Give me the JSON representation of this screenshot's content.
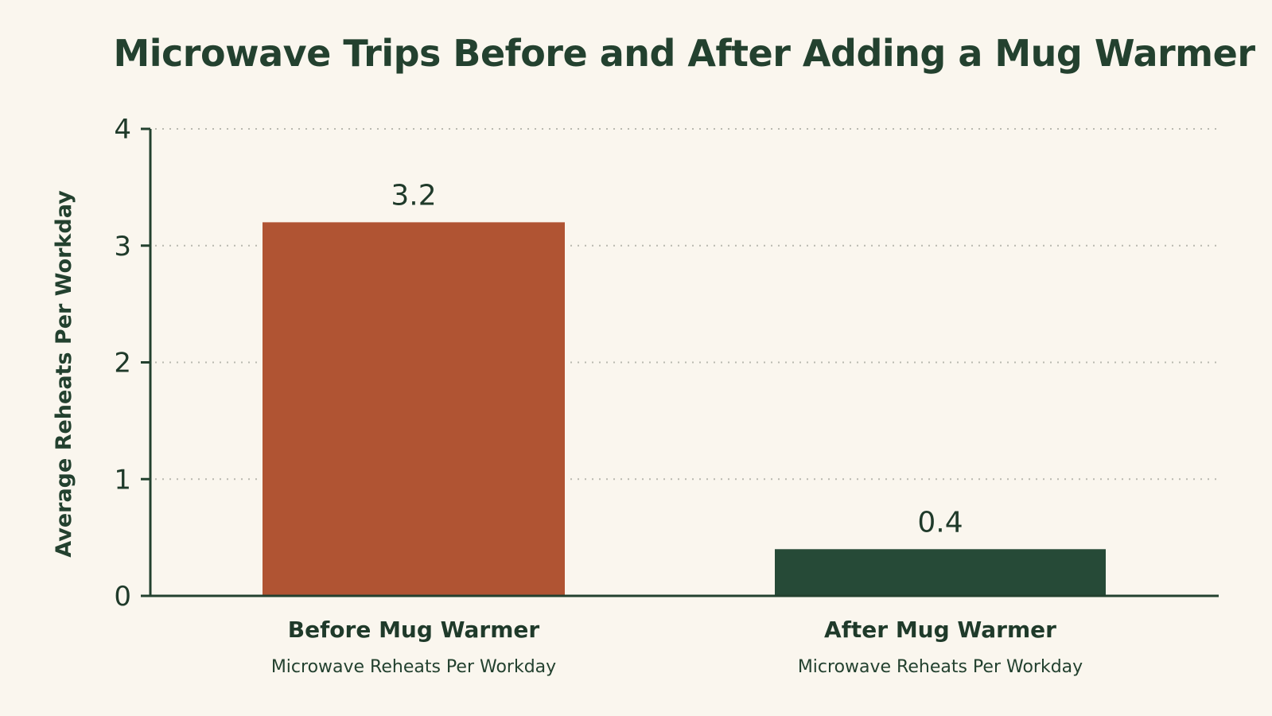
{
  "chart_data": {
    "type": "bar",
    "title": "Microwave Trips Before and After Adding a Mug Warmer",
    "ylabel": "Average Reheats Per Workday",
    "xlabel": "",
    "categories": [
      "Before Mug Warmer",
      "After Mug Warmer"
    ],
    "category_sublabels": [
      "Microwave Reheats Per Workday",
      "Microwave Reheats Per Workday"
    ],
    "values": [
      3.2,
      0.4
    ],
    "value_labels": [
      "3.2",
      "0.4"
    ],
    "bar_colors": [
      "#b05433",
      "#264a37"
    ],
    "ylim": [
      0,
      4
    ],
    "yticks": [
      0,
      1,
      2,
      3,
      4
    ],
    "grid": true,
    "grid_style": "dotted horizontal",
    "legend": "none"
  },
  "colors": {
    "background": "#faf6ee",
    "text": "#23412f",
    "axis": "#23412f",
    "grid": "#b9b9b0"
  }
}
